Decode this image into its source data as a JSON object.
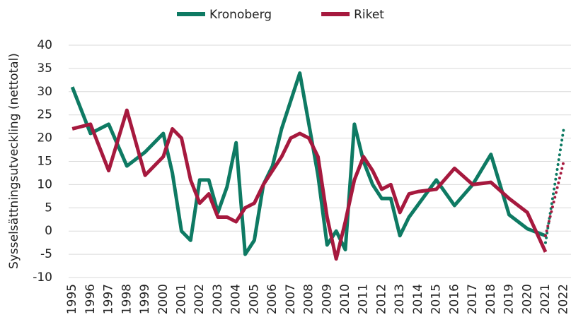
{
  "chart_data": {
    "type": "line",
    "y_label": "Sysselsättningsutveckling (nettotal)",
    "xlim": [
      1994.8,
      2022.4
    ],
    "xticks": [
      1995,
      1996,
      1997,
      1998,
      1999,
      2000,
      2001,
      2002,
      2003,
      2004,
      2005,
      2006,
      2007,
      2008,
      2009,
      2010,
      2011,
      2012,
      2013,
      2014,
      2015,
      2016,
      2017,
      2018,
      2019,
      2020,
      2021,
      2022
    ],
    "ylim": [
      -10,
      40
    ],
    "yticks": [
      -10,
      -5,
      0,
      5,
      10,
      15,
      20,
      25,
      30,
      35,
      40
    ],
    "grid": true,
    "legend": "top",
    "series": [
      {
        "name": "Kronoberg",
        "color": "#0e7a63",
        "x": [
          1995,
          1996,
          1997,
          1998,
          1999,
          2000,
          2000.5,
          2001,
          2001.5,
          2002,
          2002.5,
          2003,
          2003.5,
          2004,
          2004.5,
          2005,
          2005.5,
          2006,
          2006.5,
          2007,
          2007.5,
          2008,
          2008.5,
          2009,
          2009.5,
          2010,
          2010.5,
          2011,
          2011.5,
          2012,
          2012.5,
          2013,
          2013.5,
          2015,
          2016,
          2017,
          2018,
          2019,
          2020,
          2021
        ],
        "values": [
          31,
          21,
          23,
          14,
          17,
          21,
          12.5,
          0,
          -2,
          11,
          11,
          4,
          9.5,
          19,
          -5,
          -2,
          10,
          14,
          22,
          28,
          34,
          23,
          12,
          -3,
          0,
          -4,
          23,
          15,
          10,
          7,
          7,
          -1,
          3,
          11,
          5.5,
          10,
          16.5,
          3.5,
          0.5,
          -1
        ],
        "forecast": {
          "x": [
            2021,
            2022
          ],
          "values": [
            -2.5,
            22
          ]
        }
      },
      {
        "name": "Riket",
        "color": "#a6193e",
        "x": [
          1995,
          1996,
          1997,
          1998,
          1999,
          2000,
          2000.5,
          2001,
          2001.5,
          2002,
          2002.5,
          2003,
          2003.5,
          2004,
          2004.5,
          2005,
          2005.5,
          2006,
          2006.5,
          2007,
          2007.5,
          2008,
          2008.5,
          2009,
          2009.5,
          2010,
          2010.5,
          2011,
          2011.5,
          2012,
          2012.5,
          2013,
          2013.5,
          2014,
          2015,
          2016,
          2017,
          2018,
          2019,
          2020,
          2021
        ],
        "values": [
          22,
          23,
          13,
          26,
          12,
          16,
          22,
          20,
          11,
          6,
          8,
          3,
          3,
          2,
          5,
          6,
          10,
          13,
          16,
          20,
          21,
          20,
          16,
          3,
          -6,
          2,
          11,
          16,
          13,
          9,
          10,
          4,
          8,
          8.5,
          9,
          13.5,
          10,
          10.5,
          7,
          4,
          -4.5
        ],
        "forecast": {
          "x": [
            2021,
            2022
          ],
          "values": [
            -1,
            15
          ]
        }
      }
    ]
  }
}
